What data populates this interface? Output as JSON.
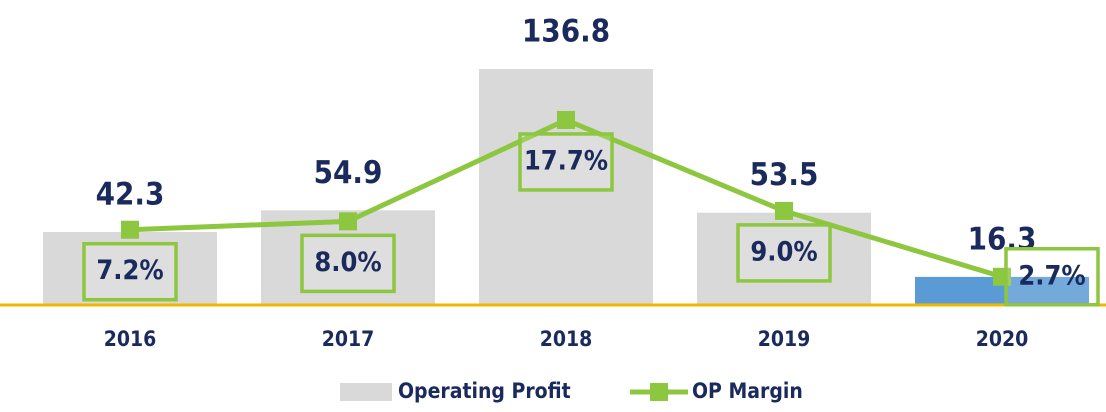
{
  "chart_data": {
    "type": "bar",
    "categories": [
      "2016",
      "2017",
      "2018",
      "2019",
      "2020"
    ],
    "series": [
      {
        "name": "Operating Profit",
        "type": "bar",
        "color": "#d9d9d9",
        "colors": [
          "#d9d9d9",
          "#d9d9d9",
          "#d9d9d9",
          "#d9d9d9",
          "#5b9bd5"
        ],
        "values": [
          42.3,
          54.9,
          136.8,
          53.5,
          16.3
        ]
      },
      {
        "name": "OP Margin",
        "type": "line",
        "axis": "y2",
        "color": "#8dc63f",
        "values": [
          7.2,
          8.0,
          17.7,
          9.0,
          2.7
        ],
        "value_labels": [
          "7.2%",
          "8.0%",
          "17.7%",
          "9.0%",
          "2.7%"
        ]
      }
    ],
    "ylim": [
      0,
      160
    ],
    "y2lim": [
      0,
      26.4
    ],
    "legend": "bottom"
  }
}
